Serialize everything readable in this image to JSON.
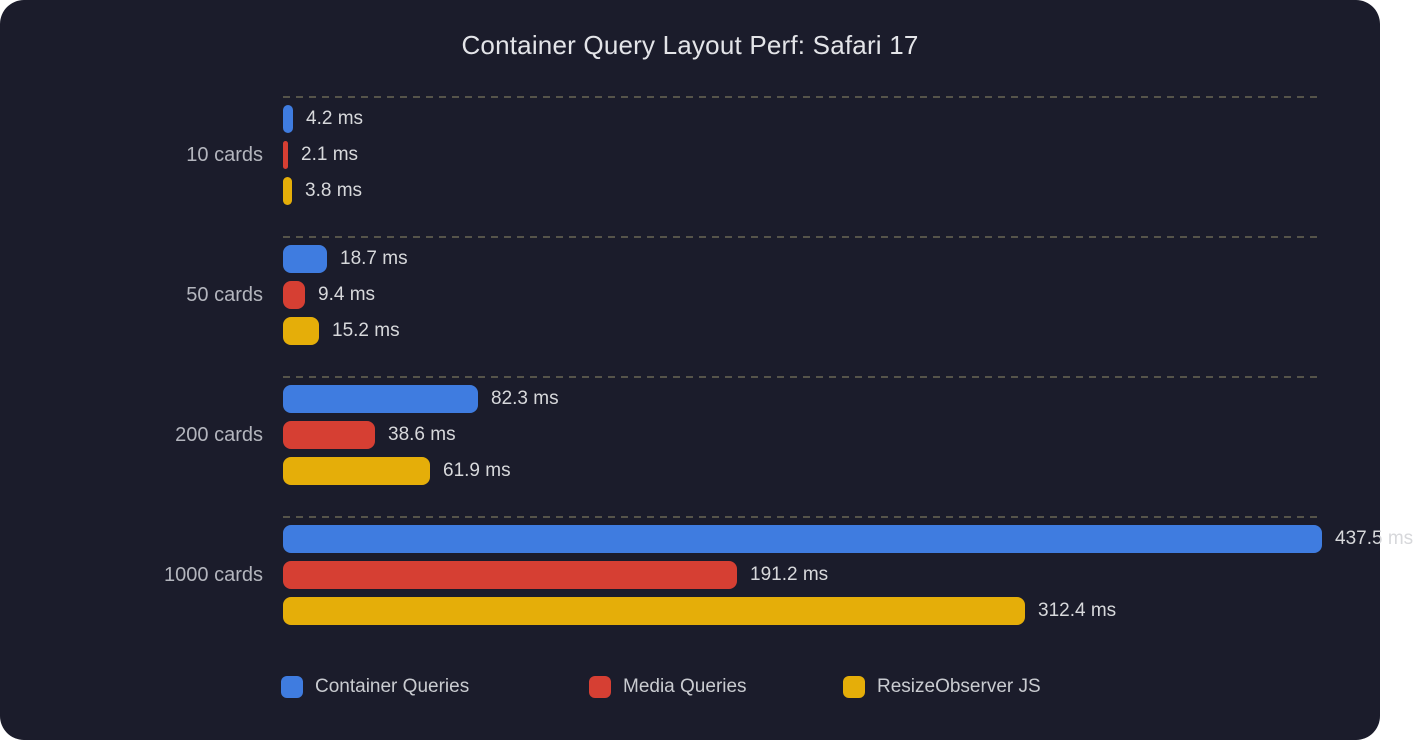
{
  "title": "Container Query Layout Perf: Safari 17",
  "colors": {
    "background": "#1b1c2b",
    "grid_dash": "#56544a",
    "title_text": "#e3e4e8",
    "category_text": "#b3b5bd",
    "value_text": "#d7d8db",
    "legend_text": "#c9cbd0"
  },
  "chart_data": {
    "type": "bar",
    "orientation": "horizontal",
    "title": "Container Query Layout Perf: Safari 17",
    "unit": "ms",
    "xmax": 437.5,
    "grid": "dashed horizontal separators above each category group",
    "legend_position": "bottom",
    "categories": [
      "10 cards",
      "50 cards",
      "200 cards",
      "1000 cards"
    ],
    "series": [
      {
        "name": "Container Queries",
        "color": "#3f7ce0",
        "values": [
          4.2,
          18.7,
          82.3,
          437.5
        ],
        "labels": [
          "4.2 ms",
          "18.7 ms",
          "82.3 ms",
          "437.5 ms"
        ]
      },
      {
        "name": "Media Queries",
        "color": "#d63f33",
        "values": [
          2.1,
          9.4,
          38.6,
          191.2
        ],
        "labels": [
          "2.1 ms",
          "9.4 ms",
          "38.6 ms",
          "191.2 ms"
        ]
      },
      {
        "name": "ResizeObserver JS",
        "color": "#e5ae09",
        "values": [
          3.8,
          15.2,
          61.9,
          312.4
        ],
        "labels": [
          "3.8 ms",
          "15.2 ms",
          "61.9 ms",
          "312.4 ms"
        ]
      }
    ]
  }
}
